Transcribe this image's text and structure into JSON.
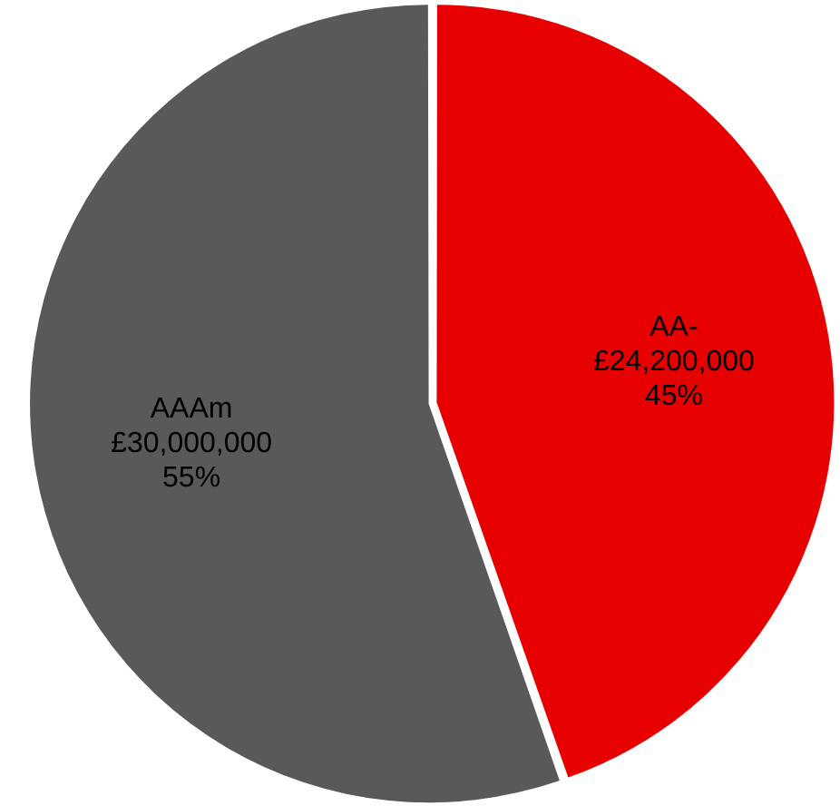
{
  "chart_data": {
    "type": "pie",
    "categories": [
      "AA-",
      "AAAm"
    ],
    "values": [
      24200000,
      30000000
    ],
    "colors": [
      "#e60000",
      "#595959"
    ],
    "value_labels": [
      "£24,200,000\n45%",
      "£30,000,000\n55%"
    ],
    "legend": false
  }
}
